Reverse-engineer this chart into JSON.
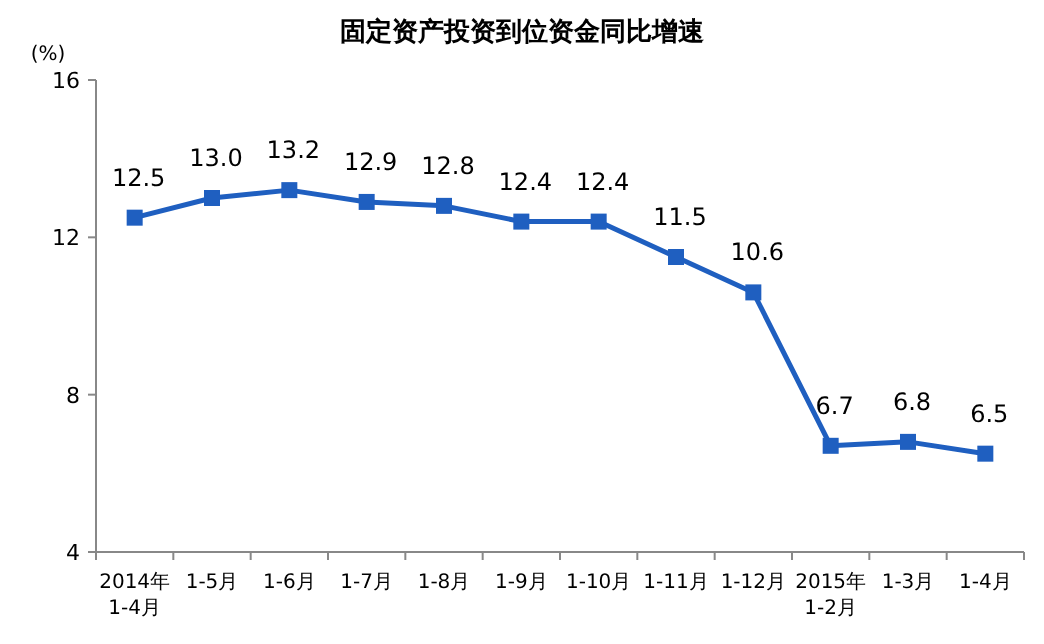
{
  "chart_data": {
    "type": "line",
    "title": "固定资产投资到位资金同比增速",
    "ylabel": "(%)",
    "categories": [
      "2014年\n1-4月",
      "1-5月",
      "1-6月",
      "1-7月",
      "1-8月",
      "1-9月",
      "1-10月",
      "1-11月",
      "1-12月",
      "2015年\n1-2月",
      "1-3月",
      "1-4月"
    ],
    "values": [
      12.5,
      13.0,
      13.2,
      12.9,
      12.8,
      12.4,
      12.4,
      11.5,
      10.6,
      6.7,
      6.8,
      6.5
    ],
    "value_labels": [
      "12.5",
      "13.0",
      "13.2",
      "12.9",
      "12.8",
      "12.4",
      "12.4",
      "11.5",
      "10.6",
      "6.7",
      "6.8",
      "6.5"
    ],
    "color": "#1f5fc0",
    "marker": "square",
    "ylim": [
      4,
      16
    ],
    "yticks": [
      4,
      8,
      12,
      16
    ],
    "grid": false
  }
}
